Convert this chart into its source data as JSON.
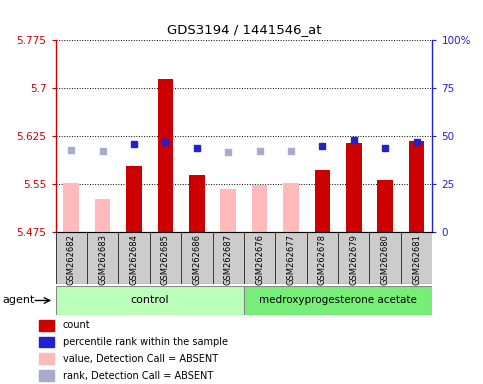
{
  "title": "GDS3194 / 1441546_at",
  "samples": [
    "GSM262682",
    "GSM262683",
    "GSM262684",
    "GSM262685",
    "GSM262686",
    "GSM262687",
    "GSM262676",
    "GSM262677",
    "GSM262678",
    "GSM262679",
    "GSM262680",
    "GSM262681"
  ],
  "red_values": [
    null,
    null,
    5.578,
    5.714,
    5.565,
    null,
    null,
    null,
    5.572,
    5.615,
    5.557,
    5.617
  ],
  "pink_values": [
    5.552,
    5.527,
    null,
    null,
    null,
    5.543,
    5.549,
    5.552,
    null,
    null,
    null,
    null
  ],
  "blue_pct": [
    null,
    null,
    46.0,
    47.0,
    44.0,
    null,
    null,
    null,
    45.0,
    48.0,
    44.0,
    47.0
  ],
  "lavender_pct": [
    43.0,
    42.5,
    null,
    null,
    null,
    42.0,
    42.5,
    42.5,
    null,
    null,
    null,
    null
  ],
  "ylim": [
    5.475,
    5.775
  ],
  "y_ticks": [
    5.475,
    5.55,
    5.625,
    5.7,
    5.775
  ],
  "y_tick_labels": [
    "5.475",
    "5.55",
    "5.625",
    "5.7",
    "5.775"
  ],
  "right_y_ticks": [
    0,
    25,
    50,
    75,
    100
  ],
  "right_y_tick_labels": [
    "0",
    "25",
    "50",
    "75",
    "100%"
  ],
  "n_control": 6,
  "n_treatment": 6,
  "control_label": "control",
  "treatment_label": "medroxyprogesterone acetate",
  "agent_label": "agent",
  "red_color": "#cc0000",
  "pink_color": "#ffbbbb",
  "blue_color": "#2222cc",
  "lavender_color": "#aaaacc",
  "control_bg": "#bbffbb",
  "treatment_bg": "#77ee77",
  "plot_bg": "#ffffff",
  "xticklabel_bg": "#cccccc",
  "left_axis_color": "#cc0000",
  "right_axis_color": "#2222cc",
  "legend_labels": [
    "count",
    "percentile rank within the sample",
    "value, Detection Call = ABSENT",
    "rank, Detection Call = ABSENT"
  ],
  "legend_colors": [
    "#cc0000",
    "#2222cc",
    "#ffbbbb",
    "#aaaacc"
  ]
}
